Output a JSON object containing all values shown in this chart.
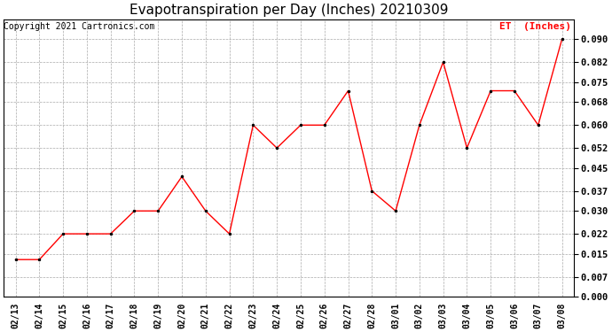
{
  "title": "Evapotranspiration per Day (Inches) 20210309",
  "copyright_text": "Copyright 2021 Cartronics.com",
  "legend_label": "ET  (Inches)",
  "dates": [
    "02/13",
    "02/14",
    "02/15",
    "02/16",
    "02/17",
    "02/18",
    "02/19",
    "02/20",
    "02/21",
    "02/22",
    "02/23",
    "02/24",
    "02/25",
    "02/26",
    "02/27",
    "02/28",
    "03/01",
    "03/02",
    "03/03",
    "03/04",
    "03/05",
    "03/06",
    "03/07",
    "03/08"
  ],
  "values": [
    0.013,
    0.013,
    0.022,
    0.022,
    0.022,
    0.03,
    0.03,
    0.042,
    0.03,
    0.022,
    0.06,
    0.052,
    0.06,
    0.06,
    0.072,
    0.037,
    0.03,
    0.06,
    0.082,
    0.052,
    0.072,
    0.072,
    0.06,
    0.09
  ],
  "ylim": [
    0.0,
    0.097
  ],
  "yticks": [
    0.0,
    0.007,
    0.015,
    0.022,
    0.03,
    0.037,
    0.045,
    0.052,
    0.06,
    0.068,
    0.075,
    0.082,
    0.09
  ],
  "line_color": "red",
  "marker_color": "black",
  "background_color": "#ffffff",
  "grid_color": "#aaaaaa",
  "title_fontsize": 11,
  "copyright_fontsize": 7,
  "legend_color": "red",
  "legend_fontsize": 8,
  "tick_fontsize": 7,
  "ytick_fontsize": 7.5
}
